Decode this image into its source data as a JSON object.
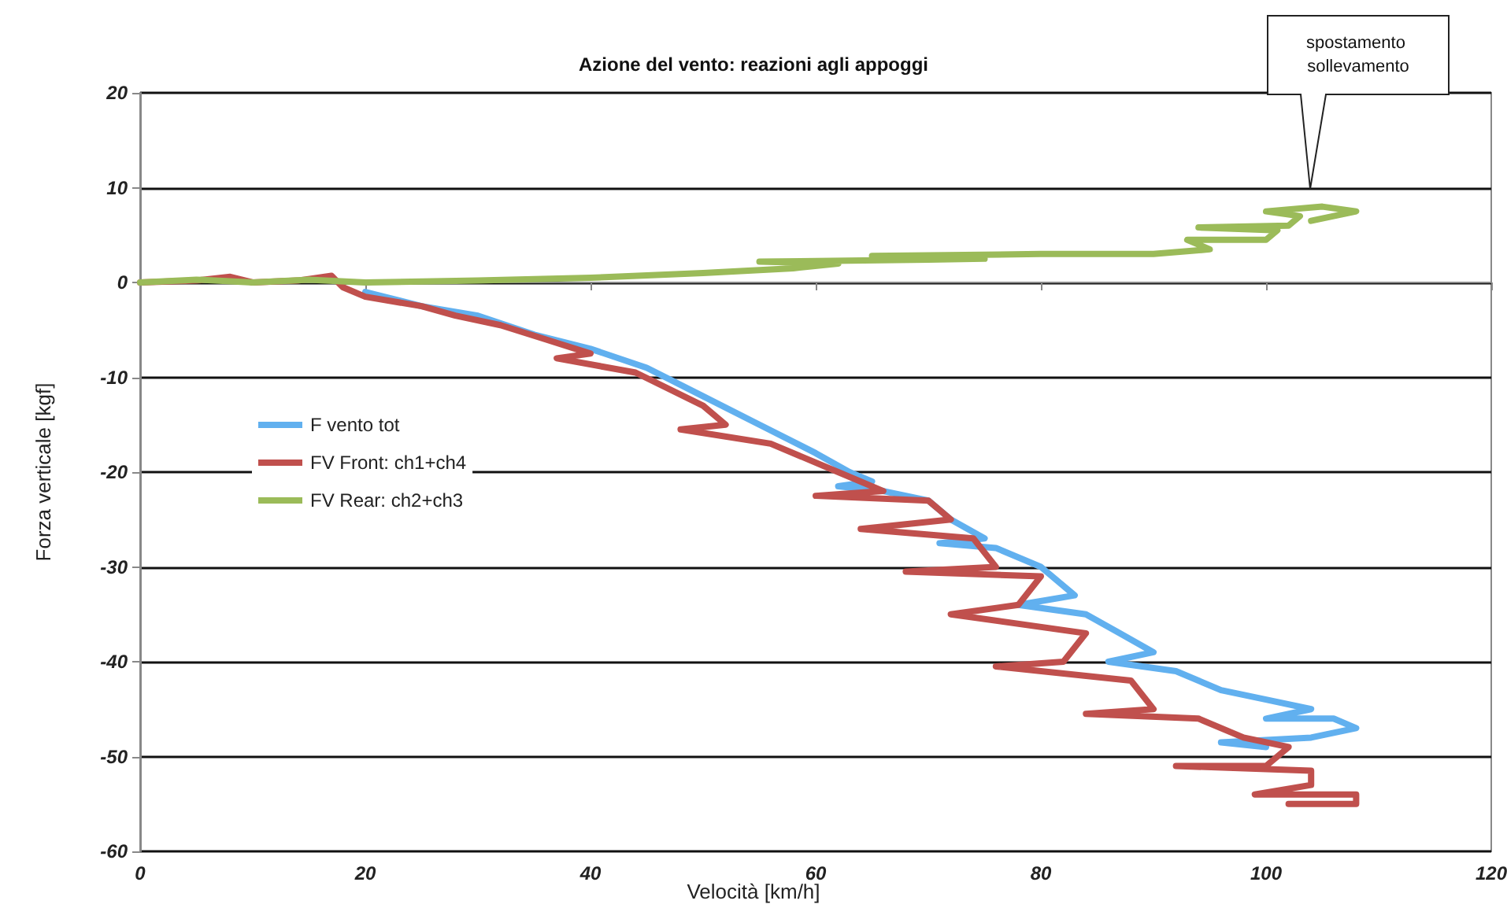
{
  "chart_data": {
    "type": "line",
    "title": "Azione del vento: reazioni agli appoggi",
    "xlabel": "Velocità [km/h]",
    "ylabel": "Forza verticale [kgf]",
    "xlim": [
      0,
      120
    ],
    "xticks": [
      0,
      20,
      40,
      60,
      80,
      100,
      120
    ],
    "ylim": [
      -60,
      20
    ],
    "yticks": [
      -60,
      -50,
      -40,
      -30,
      -20,
      -10,
      0,
      10,
      20
    ],
    "grid": "y",
    "legend": "left",
    "marker": "none",
    "line_style": "solid",
    "annotations": [
      "spostamento sollevamento"
    ],
    "series": [
      {
        "name": "F vento tot",
        "color": "#61b0ef",
        "x": [
          20,
          25,
          30,
          35,
          40,
          45,
          50,
          55,
          60,
          63,
          65,
          62,
          66,
          70,
          72,
          75,
          71,
          76,
          80,
          83,
          78,
          84,
          87,
          90,
          86,
          92,
          96,
          100,
          104,
          100,
          106,
          108,
          104,
          96,
          100
        ],
        "values": [
          -1,
          -2.5,
          -3.5,
          -5.5,
          -7,
          -9,
          -12,
          -15,
          -18,
          -20,
          -21,
          -21.5,
          -22,
          -23,
          -25,
          -27,
          -27.5,
          -28,
          -30,
          -33,
          -34,
          -35,
          -37,
          -39,
          -40,
          -41,
          -43,
          -44,
          -45,
          -46,
          -46,
          -47,
          -48,
          -48.5,
          -49
        ]
      },
      {
        "name": "FV Front: ch1+ch4",
        "color": "#c0504d",
        "x": [
          0,
          5,
          8,
          10,
          14,
          17,
          18,
          20,
          25,
          28,
          32,
          36,
          40,
          37,
          44,
          50,
          52,
          48,
          56,
          62,
          66,
          60,
          70,
          72,
          64,
          74,
          76,
          68,
          80,
          78,
          72,
          84,
          82,
          76,
          88,
          90,
          84,
          94,
          98,
          102,
          100,
          92,
          104,
          104,
          99,
          108,
          108,
          102
        ],
        "values": [
          0,
          0.2,
          0.6,
          0,
          0.2,
          0.7,
          -0.5,
          -1.5,
          -2.5,
          -3.5,
          -4.5,
          -6,
          -7.5,
          -8,
          -9.5,
          -13,
          -15,
          -15.5,
          -17,
          -20,
          -22,
          -22.5,
          -23,
          -25,
          -26,
          -27,
          -30,
          -30.5,
          -31,
          -34,
          -35,
          -37,
          -40,
          -40.5,
          -42,
          -45,
          -45.5,
          -46,
          -48,
          -49,
          -51,
          -51,
          -51.5,
          -53,
          -54,
          -54,
          -55,
          -55
        ]
      },
      {
        "name": "FV Rear: ch2+ch3",
        "color": "#9bbb59",
        "x": [
          0,
          5,
          10,
          15,
          20,
          30,
          40,
          50,
          58,
          62,
          55,
          70,
          75,
          65,
          80,
          90,
          95,
          93,
          100,
          101,
          94,
          102,
          103,
          100,
          105,
          108,
          104
        ],
        "values": [
          0,
          0.3,
          0,
          0.3,
          0,
          0.2,
          0.5,
          1,
          1.5,
          2,
          2.2,
          2.4,
          2.5,
          2.8,
          3,
          3,
          3.5,
          4.5,
          4.5,
          5.5,
          5.8,
          6,
          7,
          7.5,
          8,
          7.5,
          6.5
        ]
      }
    ]
  }
}
